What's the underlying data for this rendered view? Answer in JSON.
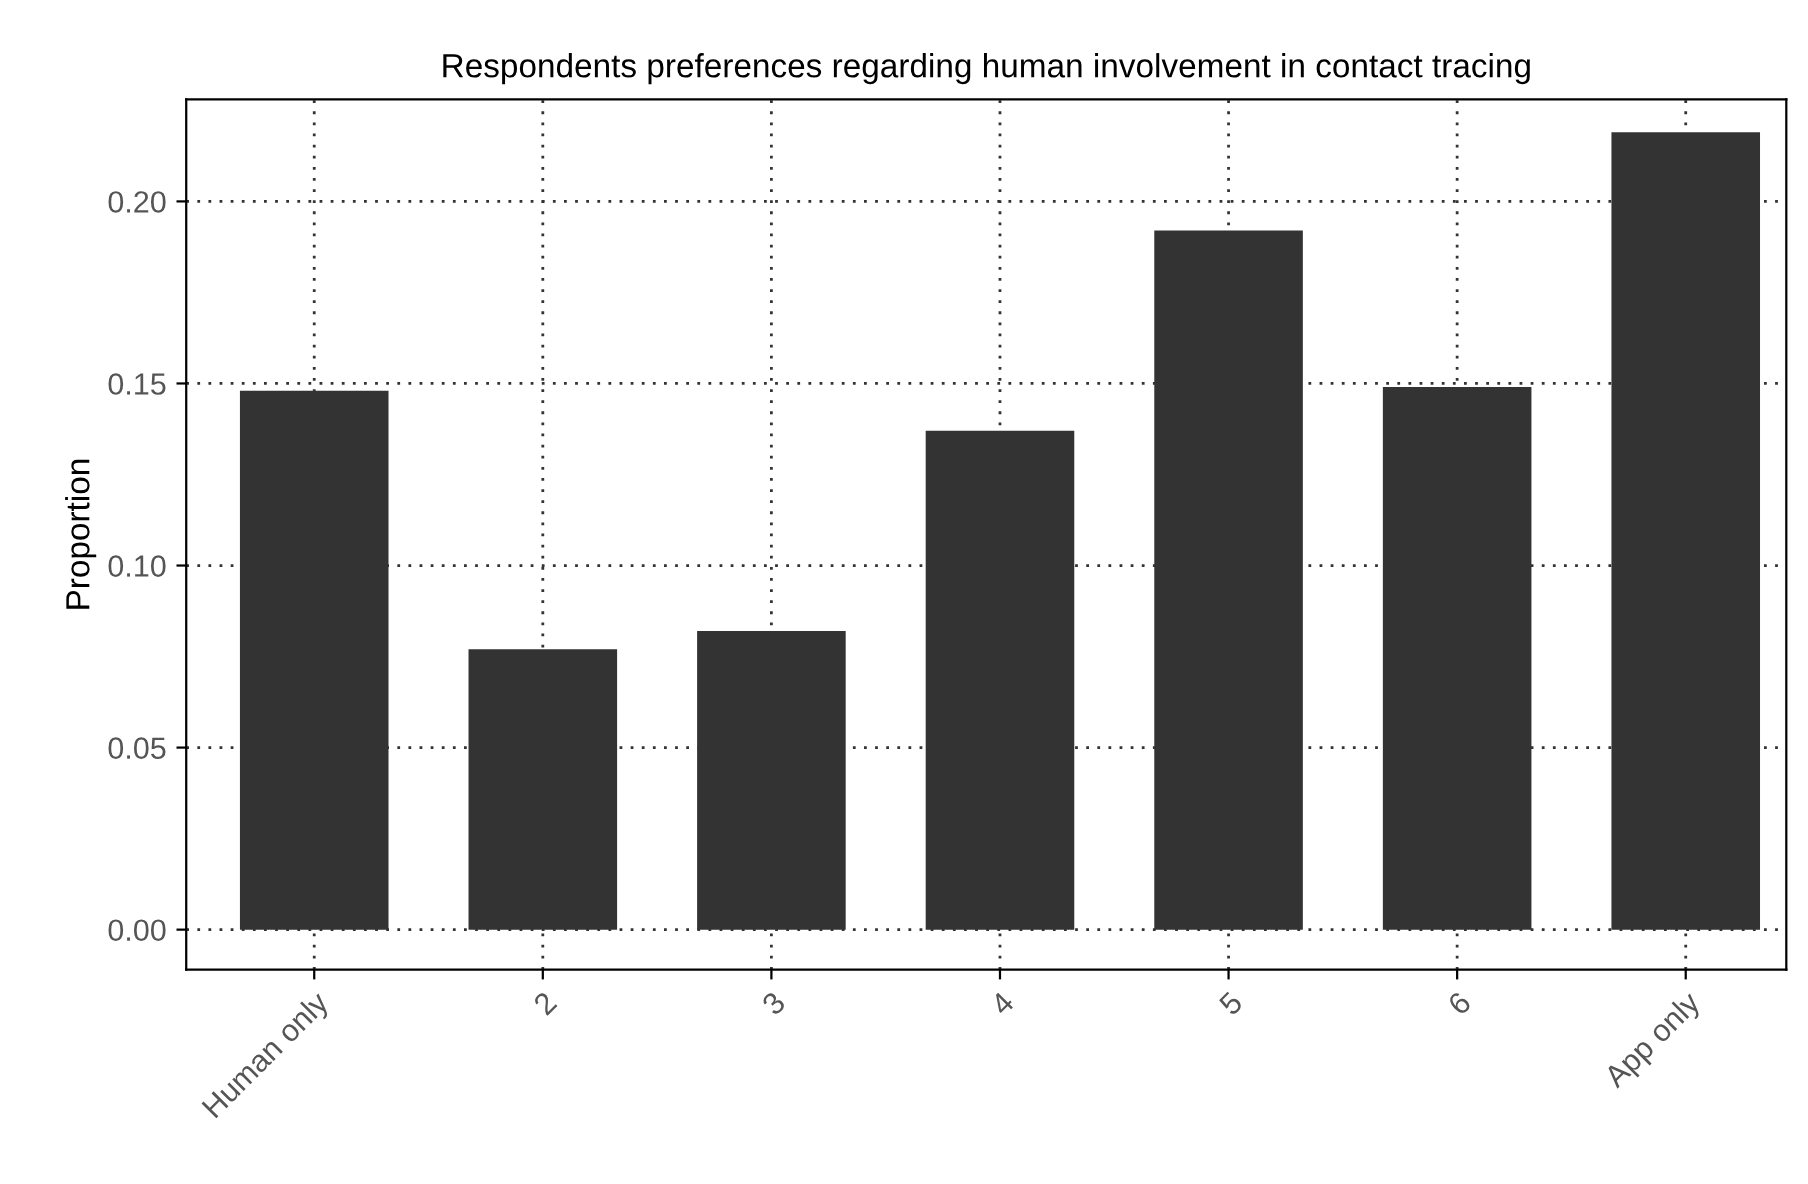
{
  "chart_data": {
    "type": "bar",
    "title": "Respondents preferences regarding human involvement in contact tracing",
    "ylabel": "Proportion",
    "categories": [
      "Human only",
      "2",
      "3",
      "4",
      "5",
      "6",
      "App only"
    ],
    "values": [
      0.148,
      0.077,
      0.082,
      0.137,
      0.192,
      0.149,
      0.219
    ],
    "color": "#333333",
    "ylim": [
      -0.011,
      0.228
    ],
    "yticks": [
      {
        "value": 0,
        "label": "0.00"
      },
      {
        "value": 0.05,
        "label": "0.05"
      },
      {
        "value": 0.1,
        "label": "0.10"
      },
      {
        "value": 0.15,
        "label": "0.15"
      },
      {
        "value": 0.2,
        "label": "0.20"
      }
    ],
    "grid": true,
    "line_style": "dotted"
  }
}
